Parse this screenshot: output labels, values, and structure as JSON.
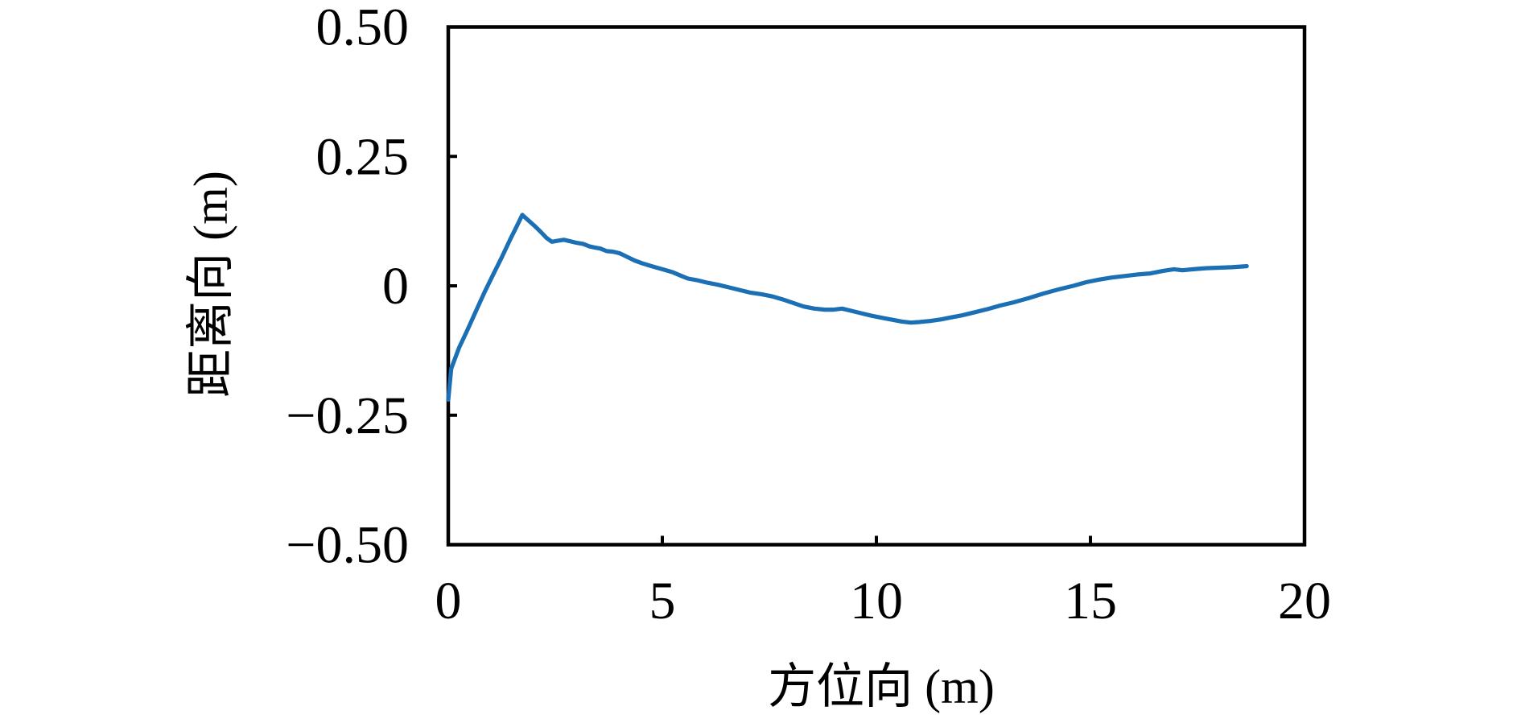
{
  "figure": {
    "background": "#ffffff",
    "axis_color": "#000000",
    "frame_stroke_width": 4.5,
    "tick_length": 11,
    "tick_stroke_width": 4,
    "line_stroke_width": 5.2
  },
  "chart_data": {
    "type": "line",
    "title": "",
    "xlabel": "方位向 (m)",
    "ylabel": "距离向 (m)",
    "xlim": [
      0,
      20
    ],
    "ylim": [
      -0.5,
      0.5
    ],
    "grid": false,
    "legend": null,
    "xticks": {
      "values": [
        0,
        5,
        10,
        15,
        20
      ],
      "labels": [
        "0",
        "5",
        "10",
        "15",
        "20"
      ]
    },
    "yticks": {
      "values": [
        0.5,
        0.25,
        0,
        -0.25,
        -0.5
      ],
      "labels": [
        "0.50",
        "0.25",
        "0",
        "−0.25",
        "−0.50"
      ]
    },
    "series": [
      {
        "name": "range-offset-curve",
        "color": "#1b6fb5",
        "points": [
          [
            0.0,
            -0.22
          ],
          [
            0.07,
            -0.16
          ],
          [
            0.25,
            -0.12
          ],
          [
            0.45,
            -0.085
          ],
          [
            0.65,
            -0.048
          ],
          [
            0.85,
            -0.012
          ],
          [
            1.05,
            0.022
          ],
          [
            1.25,
            0.055
          ],
          [
            1.45,
            0.09
          ],
          [
            1.6,
            0.115
          ],
          [
            1.73,
            0.137
          ],
          [
            1.85,
            0.128
          ],
          [
            2.0,
            0.117
          ],
          [
            2.15,
            0.105
          ],
          [
            2.3,
            0.092
          ],
          [
            2.42,
            0.085
          ],
          [
            2.55,
            0.087
          ],
          [
            2.7,
            0.089
          ],
          [
            2.85,
            0.086
          ],
          [
            3.0,
            0.083
          ],
          [
            3.15,
            0.081
          ],
          [
            3.3,
            0.076
          ],
          [
            3.42,
            0.074
          ],
          [
            3.55,
            0.072
          ],
          [
            3.7,
            0.067
          ],
          [
            3.85,
            0.066
          ],
          [
            4.0,
            0.063
          ],
          [
            4.15,
            0.057
          ],
          [
            4.35,
            0.049
          ],
          [
            4.55,
            0.043
          ],
          [
            4.75,
            0.038
          ],
          [
            5.0,
            0.032
          ],
          [
            5.25,
            0.026
          ],
          [
            5.45,
            0.019
          ],
          [
            5.6,
            0.014
          ],
          [
            5.8,
            0.011
          ],
          [
            6.05,
            0.006
          ],
          [
            6.3,
            0.002
          ],
          [
            6.55,
            -0.003
          ],
          [
            6.8,
            -0.008
          ],
          [
            7.05,
            -0.013
          ],
          [
            7.3,
            -0.016
          ],
          [
            7.55,
            -0.02
          ],
          [
            7.8,
            -0.026
          ],
          [
            8.05,
            -0.033
          ],
          [
            8.3,
            -0.04
          ],
          [
            8.55,
            -0.044
          ],
          [
            8.8,
            -0.046
          ],
          [
            9.0,
            -0.046
          ],
          [
            9.2,
            -0.044
          ],
          [
            9.4,
            -0.048
          ],
          [
            9.65,
            -0.053
          ],
          [
            9.9,
            -0.058
          ],
          [
            10.15,
            -0.062
          ],
          [
            10.4,
            -0.066
          ],
          [
            10.6,
            -0.069
          ],
          [
            10.8,
            -0.071
          ],
          [
            11.0,
            -0.07
          ],
          [
            11.25,
            -0.068
          ],
          [
            11.5,
            -0.065
          ],
          [
            11.75,
            -0.061
          ],
          [
            12.0,
            -0.057
          ],
          [
            12.3,
            -0.051
          ],
          [
            12.6,
            -0.045
          ],
          [
            12.9,
            -0.038
          ],
          [
            13.2,
            -0.032
          ],
          [
            13.55,
            -0.024
          ],
          [
            13.9,
            -0.015
          ],
          [
            14.25,
            -0.007
          ],
          [
            14.6,
            0.0
          ],
          [
            14.9,
            0.007
          ],
          [
            15.2,
            0.012
          ],
          [
            15.5,
            0.016
          ],
          [
            15.8,
            0.019
          ],
          [
            16.1,
            0.022
          ],
          [
            16.4,
            0.024
          ],
          [
            16.7,
            0.029
          ],
          [
            16.95,
            0.032
          ],
          [
            17.15,
            0.03
          ],
          [
            17.4,
            0.032
          ],
          [
            17.7,
            0.034
          ],
          [
            18.0,
            0.035
          ],
          [
            18.3,
            0.036
          ],
          [
            18.65,
            0.038
          ]
        ]
      }
    ]
  },
  "layout_note": ""
}
